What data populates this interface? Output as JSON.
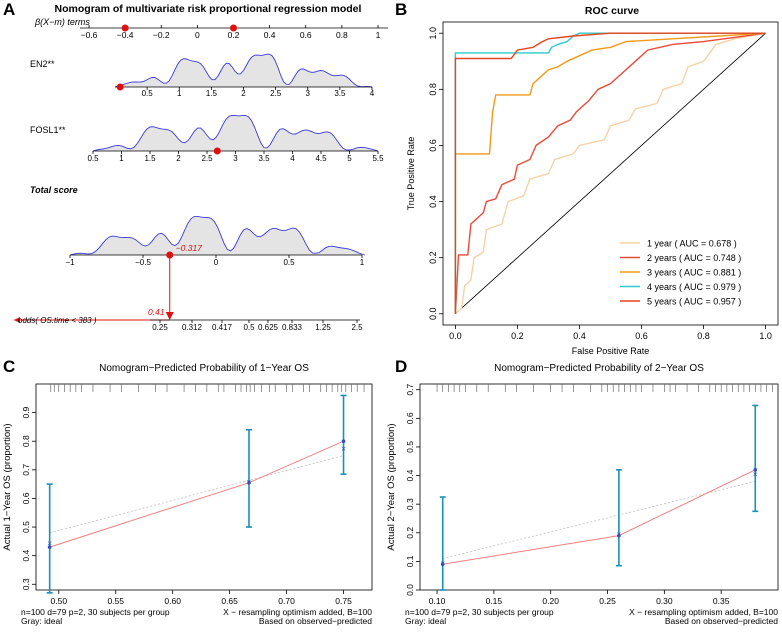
{
  "panels": {
    "A": "A",
    "B": "B",
    "C": "C",
    "D": "D"
  },
  "colors": {
    "density_line": "#3a3adf",
    "density_fill": "#e4e4e4",
    "marker": "#e01010",
    "ideal": "#bfbfbf",
    "predicted": "#f08080",
    "errorbar": "#1a90b8",
    "roc_1": "#f5d2a8",
    "roc_2": "#e84b3a",
    "roc_3": "#f39a18",
    "roc_4": "#2ecbcb",
    "roc_5": "#e6441a"
  },
  "chart_data": [
    {
      "id": "A",
      "type": "nomogram",
      "title": "Nomogram of multivariate risk proportional regression model",
      "beta": {
        "label": "β(X−m) terms",
        "ticks": [
          "−0.6",
          "−0.4",
          "−0.2",
          "0",
          "0.2",
          "0.4",
          "0.6",
          "0.8",
          "1"
        ],
        "range": [
          -0.6,
          1.0
        ],
        "markers": [
          -0.4,
          0.2
        ]
      },
      "variables": [
        {
          "name": "EN2**",
          "ticks": [
            "0.5",
            "1",
            "1.5",
            "2",
            "2.5",
            "3",
            "3.5",
            "4"
          ],
          "range": [
            0.0,
            4.0
          ],
          "marker": 0.08
        },
        {
          "name": "FOSL1**",
          "ticks": [
            "0.5",
            "1",
            "1.5",
            "2",
            "2.5",
            "3",
            "3.5",
            "4",
            "4.5",
            "5",
            "5.5"
          ],
          "range": [
            0.5,
            5.5
          ],
          "marker": 2.68
        }
      ],
      "total": {
        "name": "Total score",
        "ticks": [
          "−1",
          "−0.5",
          "0",
          "0.5",
          "1"
        ],
        "range": [
          -1.0,
          1.0
        ],
        "marker": -0.317,
        "marker_label": "−0.317"
      },
      "odds": {
        "label": "odds( OS.time < 383 )",
        "ticks": [
          "0.25",
          "0.312",
          "0.417",
          "0.5",
          "0.625",
          "0.833",
          "1.25",
          "2.5"
        ],
        "value_label": "0.41"
      }
    },
    {
      "id": "B",
      "type": "line",
      "title": "ROC curve",
      "xlabel": "False Positive Rate",
      "ylabel": "True Positive Rate",
      "xlim": [
        0,
        1
      ],
      "ylim": [
        0,
        1
      ],
      "xticks": [
        "0.0",
        "0.2",
        "0.4",
        "0.6",
        "0.8",
        "1.0"
      ],
      "yticks": [
        "0.0",
        "0.2",
        "0.4",
        "0.6",
        "0.8",
        "1.0"
      ],
      "series": [
        {
          "name": "1 year ( AUC = 0.678 )",
          "color_key": "roc_1",
          "points": [
            [
              0,
              0
            ],
            [
              0.02,
              0.02
            ],
            [
              0.03,
              0.1
            ],
            [
              0.05,
              0.12
            ],
            [
              0.06,
              0.2
            ],
            [
              0.09,
              0.22
            ],
            [
              0.1,
              0.3
            ],
            [
              0.15,
              0.32
            ],
            [
              0.17,
              0.4
            ],
            [
              0.22,
              0.42
            ],
            [
              0.24,
              0.48
            ],
            [
              0.3,
              0.5
            ],
            [
              0.32,
              0.55
            ],
            [
              0.38,
              0.57
            ],
            [
              0.4,
              0.6
            ],
            [
              0.48,
              0.62
            ],
            [
              0.5,
              0.67
            ],
            [
              0.56,
              0.69
            ],
            [
              0.58,
              0.73
            ],
            [
              0.65,
              0.75
            ],
            [
              0.67,
              0.8
            ],
            [
              0.73,
              0.82
            ],
            [
              0.75,
              0.88
            ],
            [
              0.8,
              0.9
            ],
            [
              0.84,
              0.96
            ],
            [
              0.9,
              0.98
            ],
            [
              1,
              1
            ]
          ]
        },
        {
          "name": "2 years ( AUC = 0.748 )",
          "color_key": "roc_2",
          "points": [
            [
              0,
              0
            ],
            [
              0.01,
              0.21
            ],
            [
              0.04,
              0.21
            ],
            [
              0.05,
              0.32
            ],
            [
              0.09,
              0.36
            ],
            [
              0.1,
              0.4
            ],
            [
              0.13,
              0.41
            ],
            [
              0.15,
              0.46
            ],
            [
              0.19,
              0.48
            ],
            [
              0.2,
              0.53
            ],
            [
              0.24,
              0.55
            ],
            [
              0.26,
              0.6
            ],
            [
              0.3,
              0.63
            ],
            [
              0.33,
              0.67
            ],
            [
              0.37,
              0.69
            ],
            [
              0.39,
              0.72
            ],
            [
              0.43,
              0.76
            ],
            [
              0.46,
              0.8
            ],
            [
              0.5,
              0.82
            ],
            [
              0.54,
              0.86
            ],
            [
              0.58,
              0.9
            ],
            [
              0.62,
              0.94
            ],
            [
              0.7,
              0.96
            ],
            [
              0.8,
              0.97
            ],
            [
              1,
              1
            ]
          ]
        },
        {
          "name": "3 years ( AUC = 0.881 )",
          "color_key": "roc_3",
          "points": [
            [
              0,
              0
            ],
            [
              0,
              0.57
            ],
            [
              0.11,
              0.57
            ],
            [
              0.12,
              0.72
            ],
            [
              0.13,
              0.78
            ],
            [
              0.24,
              0.78
            ],
            [
              0.25,
              0.82
            ],
            [
              0.28,
              0.85
            ],
            [
              0.3,
              0.87
            ],
            [
              0.33,
              0.88
            ],
            [
              0.36,
              0.9
            ],
            [
              0.4,
              0.92
            ],
            [
              0.44,
              0.94
            ],
            [
              0.5,
              0.95
            ],
            [
              0.55,
              0.97
            ],
            [
              0.7,
              0.98
            ],
            [
              0.85,
              0.99
            ],
            [
              1,
              1
            ]
          ]
        },
        {
          "name": "4 years ( AUC = 0.979 )",
          "color_key": "roc_4",
          "points": [
            [
              0,
              0
            ],
            [
              0,
              0.93
            ],
            [
              0.3,
              0.93
            ],
            [
              0.31,
              0.95
            ],
            [
              0.33,
              0.96
            ],
            [
              0.36,
              0.97
            ],
            [
              0.38,
              0.99
            ],
            [
              0.4,
              1.0
            ],
            [
              1,
              1
            ]
          ]
        },
        {
          "name": "5 years ( AUC = 0.957 )",
          "color_key": "roc_5",
          "points": [
            [
              0,
              0
            ],
            [
              0,
              0.91
            ],
            [
              0.18,
              0.91
            ],
            [
              0.2,
              0.94
            ],
            [
              0.25,
              0.95
            ],
            [
              0.28,
              0.97
            ],
            [
              0.3,
              0.98
            ],
            [
              0.38,
              0.99
            ],
            [
              0.5,
              1.0
            ],
            [
              1,
              1
            ]
          ]
        }
      ]
    },
    {
      "id": "C",
      "type": "calibration",
      "title": "Nomogram−Predicted Probability of 1−Year OS",
      "xlabel": "",
      "ylabel": "Actual 1−Year OS (proportion)",
      "xlim": [
        0.48,
        0.775
      ],
      "ylim": [
        0.28,
        1.0
      ],
      "xticks": [
        "0.50",
        "0.55",
        "0.60",
        "0.65",
        "0.70",
        "0.75"
      ],
      "yticks": [
        "0.3",
        "0.4",
        "0.5",
        "0.6",
        "0.7",
        "0.8",
        "0.9"
      ],
      "points": [
        {
          "x": 0.492,
          "y": 0.43,
          "lo": 0.27,
          "hi": 0.65,
          "ideal_y": 0.445
        },
        {
          "x": 0.667,
          "y": 0.655,
          "lo": 0.5,
          "hi": 0.84,
          "ideal_y": 0.66
        },
        {
          "x": 0.75,
          "y": 0.8,
          "lo": 0.685,
          "hi": 0.96,
          "ideal_y": 0.775
        }
      ],
      "ideal_line": [
        [
          0.492,
          0.48
        ],
        [
          0.75,
          0.75
        ]
      ],
      "rug": [
        0.493,
        0.496,
        0.5,
        0.505,
        0.51,
        0.515,
        0.52,
        0.53,
        0.545,
        0.555,
        0.57,
        0.585,
        0.595,
        0.61,
        0.62,
        0.63,
        0.64,
        0.645,
        0.655,
        0.66,
        0.665,
        0.668,
        0.672,
        0.678,
        0.685,
        0.69,
        0.7,
        0.705,
        0.715,
        0.72,
        0.73,
        0.735,
        0.74,
        0.745,
        0.748,
        0.752,
        0.757,
        0.762,
        0.768
      ],
      "footer_left": [
        "n=100 d=79 p=2, 30 subjects per group",
        "Gray: ideal"
      ],
      "footer_right": [
        "X − resampling optimism added, B=100",
        "Based on observed−predicted"
      ]
    },
    {
      "id": "D",
      "type": "calibration",
      "title": "Nomogram−Predicted Probability of 2−Year OS",
      "xlabel": "",
      "ylabel": "Actual 2−Year OS (proportion)",
      "xlim": [
        0.085,
        0.4
      ],
      "ylim": [
        0.0,
        0.72
      ],
      "xticks": [
        "0.10",
        "0.15",
        "0.20",
        "0.25",
        "0.30",
        "0.35"
      ],
      "yticks": [
        "0.0",
        "0.1",
        "0.2",
        "0.3",
        "0.4",
        "0.5",
        "0.6",
        "0.7"
      ],
      "points": [
        {
          "x": 0.105,
          "y": 0.09,
          "lo": 0.0,
          "hi": 0.325,
          "ideal_y": 0.095
        },
        {
          "x": 0.26,
          "y": 0.19,
          "lo": 0.085,
          "hi": 0.42,
          "ideal_y": 0.195
        },
        {
          "x": 0.38,
          "y": 0.42,
          "lo": 0.275,
          "hi": 0.645,
          "ideal_y": 0.405
        }
      ],
      "ideal_line": [
        [
          0.105,
          0.11
        ],
        [
          0.38,
          0.38
        ]
      ],
      "rug": [
        0.1,
        0.105,
        0.11,
        0.115,
        0.12,
        0.125,
        0.135,
        0.145,
        0.16,
        0.17,
        0.185,
        0.2,
        0.21,
        0.22,
        0.235,
        0.245,
        0.25,
        0.255,
        0.26,
        0.265,
        0.27,
        0.275,
        0.28,
        0.29,
        0.3,
        0.305,
        0.31,
        0.32,
        0.33,
        0.34,
        0.345,
        0.35,
        0.355,
        0.36,
        0.365,
        0.37,
        0.375,
        0.38,
        0.385,
        0.39,
        0.395
      ],
      "footer_left": [
        "n=100 d=79 p=2, 30 subjects per group",
        "Gray: ideal"
      ],
      "footer_right": [
        "X − resampling optimism added, B=100",
        "Based on observed−predicted"
      ]
    }
  ]
}
